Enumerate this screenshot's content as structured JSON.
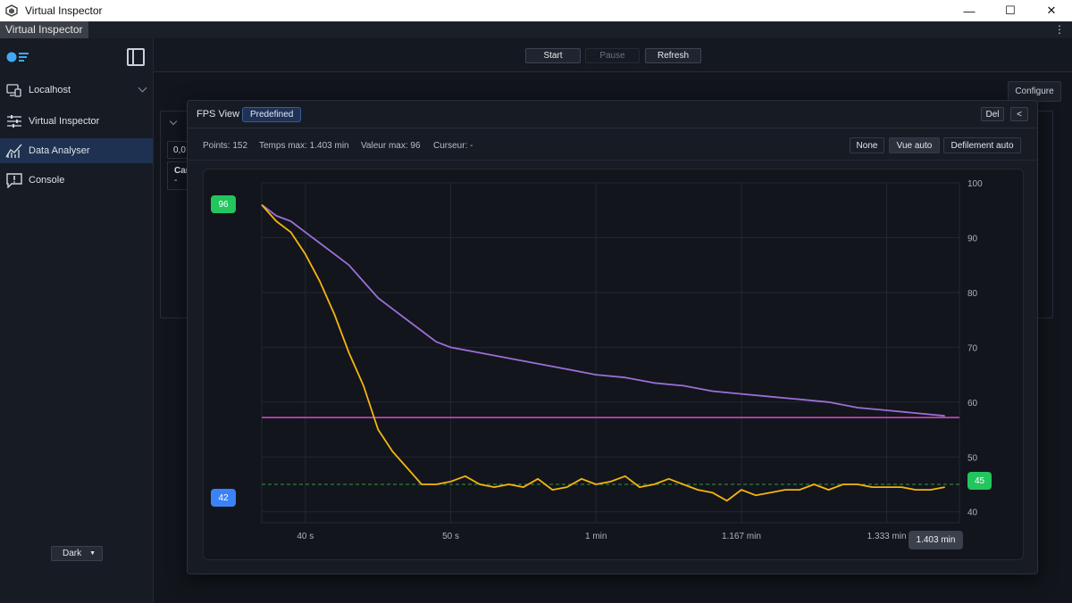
{
  "window": {
    "title": "Virtual Inspector",
    "minimize": "—",
    "maximize": "☐",
    "close": "✕"
  },
  "menu": {
    "tab": "Virtual Inspector",
    "more": "⋮"
  },
  "sidebar": {
    "items": [
      {
        "label": "Localhost",
        "icon": "device-connect-icon"
      },
      {
        "label": "Virtual Inspector",
        "icon": "sliders-icon"
      },
      {
        "label": "Data Analyser",
        "icon": "chart-line-icon",
        "active": true
      },
      {
        "label": "Console",
        "icon": "alert-message-icon"
      }
    ],
    "theme": "Dark"
  },
  "toolbar": {
    "start": "Start",
    "pause": "Pause",
    "refresh": "Refresh"
  },
  "configure": "Configure",
  "background_panel": {
    "value": "0,0",
    "card_label": "Car",
    "card_value": "-"
  },
  "fps_view": {
    "title": "FPS View",
    "tag": "Predefined",
    "del": "Del",
    "collapse": "<",
    "stats": {
      "points": "Points: 152",
      "temps_max": "Temps max: 1.403 min",
      "valeur_max": "Valeur max: 96",
      "curseur": "Curseur: -"
    },
    "modes": {
      "none": "None",
      "vue_auto": "Vue auto",
      "defilement": "Defilement auto"
    },
    "badges": {
      "max": "96",
      "min": "42",
      "current": "45"
    },
    "time_tag": "1.403 min"
  },
  "chart_data": {
    "type": "line",
    "x_ticks": [
      "40 s",
      "50 s",
      "1 min",
      "1.167 min",
      "1.333 min"
    ],
    "y_ticks": [
      100,
      90,
      80,
      70,
      60,
      50,
      40
    ],
    "ylim": [
      38,
      100
    ],
    "xlim": [
      37,
      85
    ],
    "grid": true,
    "series": [
      {
        "color": "#9b6fd6",
        "x": [
          37.0,
          38.0,
          39.0,
          40.0,
          41.0,
          42.0,
          43.0,
          44.0,
          45.0,
          46.0,
          47.0,
          48.0,
          49.0,
          50.0,
          52.0,
          54.0,
          56.0,
          58.0,
          60.0,
          62.0,
          64.0,
          66.0,
          68.0,
          70.0,
          72.0,
          74.0,
          76.0,
          78.0,
          80.0,
          82.0,
          84.0
        ],
        "y": [
          96,
          94,
          93,
          91,
          89,
          87,
          85,
          82,
          79,
          77,
          75,
          73,
          71,
          70,
          69,
          68,
          67,
          66,
          65,
          64.5,
          63.5,
          63,
          62,
          61.5,
          61,
          60.5,
          60,
          59,
          58.5,
          58,
          57.5
        ]
      },
      {
        "color": "#f5b50f",
        "x": [
          37.0,
          38.0,
          39.0,
          40.0,
          41.0,
          42.0,
          43.0,
          44.0,
          45.0,
          46.0,
          47.0,
          48.0,
          49.0,
          50.0,
          51.0,
          52.0,
          53.0,
          54.0,
          55.0,
          56.0,
          57.0,
          58.0,
          59.0,
          60.0,
          61.0,
          62.0,
          63.0,
          64.0,
          65.0,
          66.0,
          67.0,
          68.0,
          69.0,
          70.0,
          71.0,
          72.0,
          73.0,
          74.0,
          75.0,
          76.0,
          77.0,
          78.0,
          79.0,
          80.0,
          81.0,
          82.0,
          83.0,
          84.0
        ],
        "y": [
          96,
          93,
          91,
          87,
          82,
          76,
          69,
          63,
          55,
          51,
          48,
          45,
          45,
          45.5,
          46.5,
          45,
          44.5,
          45,
          44.5,
          46,
          44,
          44.5,
          46,
          45,
          45.5,
          46.5,
          44.5,
          45,
          46,
          45,
          44,
          43.5,
          42,
          44,
          43,
          43.5,
          44,
          44,
          45,
          44,
          45,
          45,
          44.5,
          44.5,
          44.5,
          44,
          44,
          44.5
        ]
      }
    ],
    "reference_lines": [
      {
        "y": 57.2,
        "color": "#c84bb8",
        "style": "solid"
      },
      {
        "y": 45,
        "color": "#2f7d3c",
        "style": "dashed"
      }
    ]
  }
}
